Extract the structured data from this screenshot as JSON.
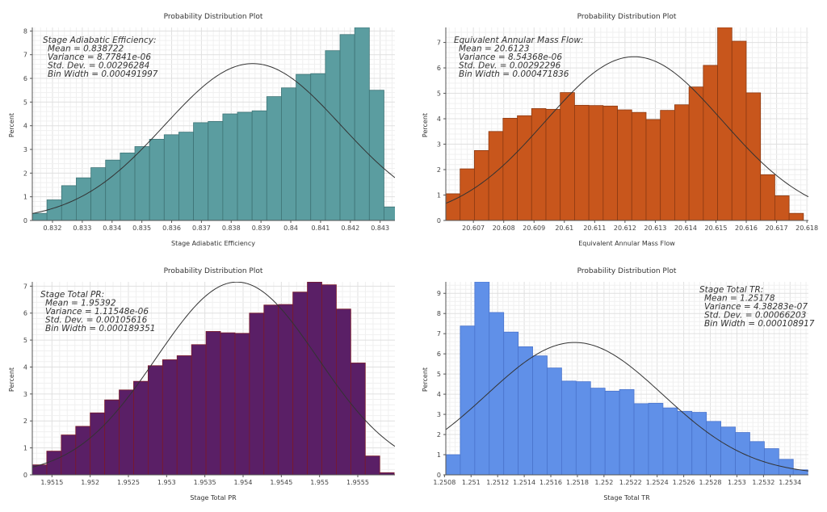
{
  "chart_data": [
    {
      "type": "bar",
      "title": "Probability Distribution Plot",
      "xlabel": "Stage Adiabatic Efficiency",
      "ylabel": "Percent",
      "xlim": [
        0.831322,
        0.843497
      ],
      "ylim": [
        0,
        8.15
      ],
      "xticks": [
        "0.832",
        "0.833",
        "0.834",
        "0.835",
        "0.836",
        "0.837",
        "0.838",
        "0.839",
        "0.84",
        "0.841",
        "0.842",
        "0.843"
      ],
      "yticks": [
        "0",
        "1",
        "2",
        "3",
        "4",
        "5",
        "6",
        "7",
        "8"
      ],
      "color": "#5b9da0",
      "edge_color": "#3f7476",
      "grid": true,
      "annotation_position": "top-left",
      "annotation": {
        "heading": "Stage Adiabatic Efficiency:",
        "lines": [
          {
            "label": "Mean",
            "value": "0.838722"
          },
          {
            "label": "Variance",
            "value": "8.77841e-06"
          },
          {
            "label": "Std. Dev.",
            "value": "0.00296284"
          },
          {
            "label": "Bin Width",
            "value": "0.000491997"
          }
        ]
      },
      "values": [
        0.3,
        0.87,
        1.47,
        1.8,
        2.23,
        2.55,
        2.85,
        3.12,
        3.43,
        3.62,
        3.73,
        4.13,
        4.18,
        4.5,
        4.57,
        4.63,
        5.23,
        5.6,
        6.17,
        6.2,
        7.17,
        7.85,
        8.15,
        5.5,
        0.57
      ]
    },
    {
      "type": "bar",
      "title": "Probability Distribution Plot",
      "xlabel": "Equivalent Annular Mass Flow",
      "ylabel": "Percent",
      "xlim": [
        20.60609,
        20.61805
      ],
      "ylim": [
        0,
        7.59
      ],
      "xticks": [
        "20.607",
        "20.608",
        "20.609",
        "20.61",
        "20.611",
        "20.612",
        "20.613",
        "20.614",
        "20.615",
        "20.616",
        "20.617",
        "20.618"
      ],
      "yticks": [
        "0",
        "1",
        "2",
        "3",
        "4",
        "5",
        "6",
        "7"
      ],
      "color": "#c8561c",
      "edge_color": "#8c3a12",
      "grid": true,
      "annotation_position": "top-left",
      "annotation": {
        "heading": "Equivalent Annular Mass Flow:",
        "lines": [
          {
            "label": "Mean",
            "value": "20.6123"
          },
          {
            "label": "Variance",
            "value": "8.54368e-06"
          },
          {
            "label": "Std. Dev.",
            "value": "0.00292296"
          },
          {
            "label": "Bin Width",
            "value": "0.000471836"
          }
        ]
      },
      "values": [
        1.05,
        2.03,
        2.75,
        3.5,
        4.02,
        4.12,
        4.4,
        4.37,
        5.03,
        4.53,
        4.52,
        4.5,
        4.35,
        4.25,
        3.97,
        4.33,
        4.55,
        5.25,
        6.1,
        7.59,
        7.05,
        5.02,
        1.8,
        0.97,
        0.28
      ]
    },
    {
      "type": "bar",
      "title": "Probability Distribution Plot",
      "xlabel": "Stage Total PR",
      "ylabel": "Percent",
      "xlim": [
        1.951243,
        1.955986
      ],
      "ylim": [
        0,
        7.16
      ],
      "xticks": [
        "1.9515",
        "1.952",
        "1.9525",
        "1.953",
        "1.9535",
        "1.954",
        "1.9545",
        "1.955",
        "1.9555"
      ],
      "yticks": [
        "0",
        "1",
        "2",
        "3",
        "4",
        "5",
        "6",
        "7"
      ],
      "color": "#5a1f66",
      "edge_color": "#7a1a2a",
      "grid": true,
      "annotation_position": "top-left",
      "annotation": {
        "heading": "Stage Total PR:",
        "lines": [
          {
            "label": "Mean",
            "value": "1.95392"
          },
          {
            "label": "Variance",
            "value": "1.11548e-06"
          },
          {
            "label": "Std. Dev.",
            "value": "0.00105616"
          },
          {
            "label": "Bin Width",
            "value": "0.000189351"
          }
        ]
      },
      "values": [
        0.37,
        0.88,
        1.48,
        1.8,
        2.3,
        2.78,
        3.15,
        3.47,
        4.05,
        4.27,
        4.42,
        4.83,
        5.32,
        5.27,
        5.25,
        6.0,
        6.3,
        6.32,
        6.78,
        7.15,
        7.05,
        6.15,
        4.15,
        0.7,
        0.08
      ]
    },
    {
      "type": "bar",
      "title": "Probability Distribution Plot",
      "xlabel": "Stage Total TR",
      "ylabel": "Percent",
      "xlim": [
        1.25081,
        1.253538
      ],
      "ylim": [
        0,
        9.57
      ],
      "xticks": [
        "1.2508",
        "1.251",
        "1.2512",
        "1.2514",
        "1.2516",
        "1.2518",
        "1.252",
        "1.2522",
        "1.2524",
        "1.2526",
        "1.2528",
        "1.253",
        "1.2532",
        "1.2534"
      ],
      "yticks": [
        "0",
        "1",
        "2",
        "3",
        "4",
        "5",
        "6",
        "7",
        "8",
        "9"
      ],
      "color": "#6090e8",
      "edge_color": "#4a74cc",
      "grid": true,
      "annotation_position": "top-right",
      "annotation": {
        "heading": "Stage Total TR:",
        "lines": [
          {
            "label": "Mean",
            "value": "1.25178"
          },
          {
            "label": "Variance",
            "value": "4.38283e-07"
          },
          {
            "label": "Std. Dev.",
            "value": "0.00066203"
          },
          {
            "label": "Bin Width",
            "value": "0.000108917"
          }
        ]
      },
      "values": [
        1.0,
        7.38,
        9.57,
        8.05,
        7.08,
        6.35,
        5.9,
        5.3,
        4.65,
        4.62,
        4.3,
        4.15,
        4.23,
        3.53,
        3.55,
        3.32,
        3.15,
        3.1,
        2.65,
        2.37,
        2.1,
        1.65,
        1.3,
        0.77,
        0.25
      ]
    }
  ]
}
